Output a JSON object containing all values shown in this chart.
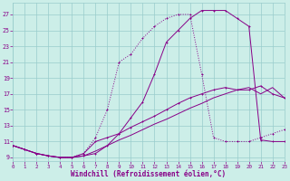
{
  "xlabel": "Windchill (Refroidissement éolien,°C)",
  "bg_color": "#cceee8",
  "grid_color": "#99cccc",
  "line_color": "#880088",
  "x_ticks": [
    0,
    1,
    2,
    3,
    4,
    5,
    6,
    7,
    8,
    9,
    10,
    11,
    12,
    13,
    14,
    15,
    16,
    17,
    18,
    19,
    20,
    21,
    22,
    23
  ],
  "y_ticks": [
    9,
    11,
    13,
    15,
    17,
    19,
    21,
    23,
    25,
    27
  ],
  "xlim": [
    0,
    23
  ],
  "ylim": [
    8.5,
    28.5
  ],
  "s1_x": [
    0,
    1,
    2,
    3,
    4,
    5,
    6,
    7,
    8,
    9,
    10,
    11,
    12,
    13,
    14,
    15,
    16,
    17,
    18,
    19,
    20,
    21,
    22,
    23
  ],
  "s1_y": [
    10.5,
    10.0,
    9.5,
    9.2,
    9.0,
    9.0,
    9.2,
    9.5,
    10.5,
    12.0,
    14.0,
    16.0,
    19.5,
    23.5,
    25.0,
    26.5,
    27.5,
    27.5,
    27.5,
    26.5,
    25.5,
    11.2,
    11.0,
    11.0
  ],
  "s2_x": [
    0,
    1,
    2,
    3,
    4,
    5,
    6,
    7,
    8,
    9,
    10,
    11,
    12,
    13,
    14,
    15,
    16,
    17,
    18,
    19,
    20,
    21,
    22,
    23
  ],
  "s2_y": [
    10.5,
    10.0,
    9.5,
    9.2,
    9.0,
    9.0,
    9.5,
    11.5,
    15.0,
    21.0,
    22.0,
    24.0,
    25.5,
    26.5,
    27.0,
    27.0,
    19.5,
    11.5,
    11.0,
    11.0,
    11.0,
    11.5,
    12.0,
    12.5
  ],
  "s3_x": [
    0,
    1,
    2,
    3,
    4,
    5,
    6,
    7,
    8,
    9,
    10,
    11,
    12,
    13,
    14,
    15,
    16,
    17,
    18,
    19,
    20,
    21,
    22,
    23
  ],
  "s3_y": [
    10.5,
    10.0,
    9.5,
    9.2,
    9.0,
    9.0,
    9.5,
    11.0,
    11.5,
    12.0,
    12.8,
    13.5,
    14.2,
    15.0,
    15.8,
    16.5,
    17.0,
    17.5,
    17.8,
    17.5,
    17.5,
    18.0,
    17.0,
    16.5
  ],
  "s4_x": [
    0,
    1,
    2,
    3,
    4,
    5,
    6,
    7,
    8,
    9,
    10,
    11,
    12,
    13,
    14,
    15,
    16,
    17,
    18,
    19,
    20,
    21,
    22,
    23
  ],
  "s4_y": [
    10.5,
    10.0,
    9.5,
    9.2,
    9.0,
    9.0,
    9.2,
    9.8,
    10.5,
    11.2,
    11.8,
    12.5,
    13.2,
    13.8,
    14.5,
    15.2,
    15.8,
    16.5,
    17.0,
    17.5,
    17.8,
    17.0,
    17.8,
    16.5
  ]
}
